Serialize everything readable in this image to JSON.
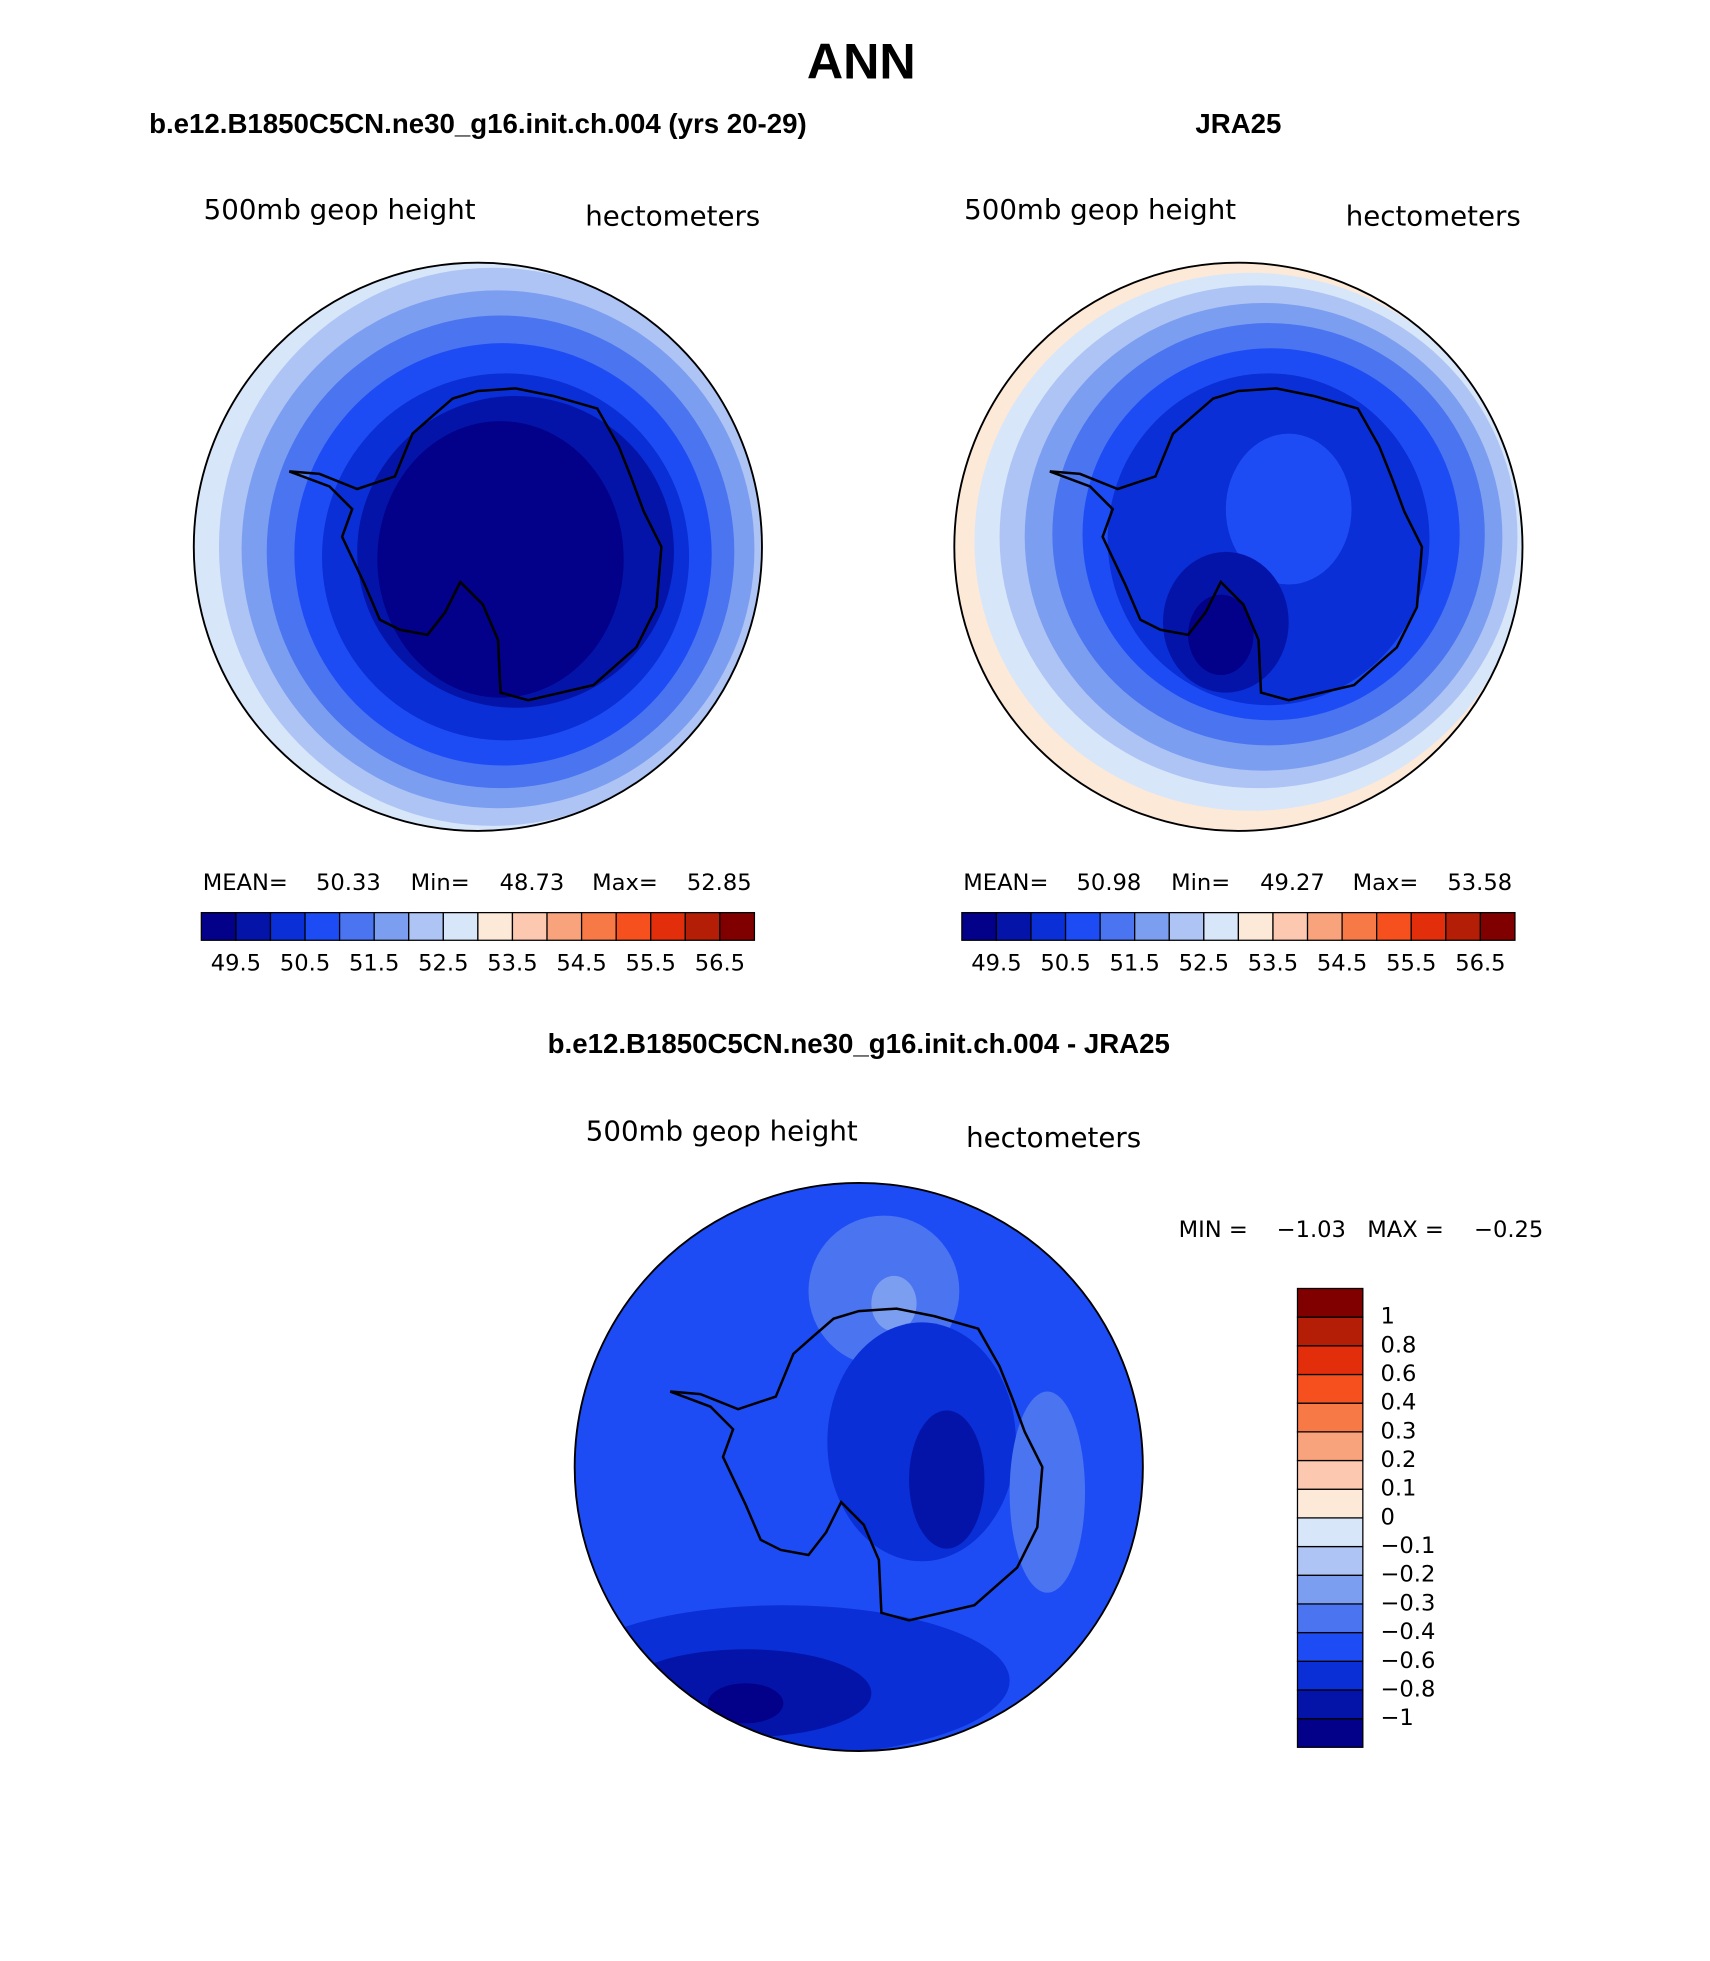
{
  "title": "ANN",
  "panels": [
    {
      "case": "b.e12.B1850C5CN.ne30_g16.init.ch.004 (yrs 20-29)",
      "variable": "500mb geop height",
      "units": "hectometers",
      "stats": [
        {
          "label": "MEAN=",
          "value": "50.33"
        },
        {
          "label": "Min=",
          "value": "48.73"
        },
        {
          "label": "Max=",
          "value": "52.85"
        }
      ],
      "colorbar": {
        "colors": [
          "#03008a",
          "#0514a8",
          "#0a2fd6",
          "#1d4cf5",
          "#4a74f0",
          "#7c9ef0",
          "#aec4f5",
          "#d8e6fa",
          "#fde9d8",
          "#fcc8b0",
          "#f9a37c",
          "#f77a46",
          "#f6501e",
          "#e22e0a",
          "#b41e06",
          "#800000"
        ],
        "labels": [
          "49.5",
          "50.5",
          "51.5",
          "52.5",
          "53.5",
          "54.5",
          "55.5",
          "56.5"
        ]
      }
    },
    {
      "case": "JRA25",
      "variable": "500mb geop height",
      "units": "hectometers",
      "stats": [
        {
          "label": "MEAN=",
          "value": "50.98"
        },
        {
          "label": "Min=",
          "value": "49.27"
        },
        {
          "label": "Max=",
          "value": "53.58"
        }
      ],
      "colorbar": {
        "colors": [
          "#03008a",
          "#0514a8",
          "#0a2fd6",
          "#1d4cf5",
          "#4a74f0",
          "#7c9ef0",
          "#aec4f5",
          "#d8e6fa",
          "#fde9d8",
          "#fcc8b0",
          "#f9a37c",
          "#f77a46",
          "#f6501e",
          "#e22e0a",
          "#b41e06",
          "#800000"
        ],
        "labels": [
          "49.5",
          "50.5",
          "51.5",
          "52.5",
          "53.5",
          "54.5",
          "55.5",
          "56.5"
        ]
      }
    }
  ],
  "difference": {
    "case": "b.e12.B1850C5CN.ne30_g16.init.ch.004 - JRA25",
    "variable": "500mb geop height",
    "units": "hectometers",
    "stats": [
      {
        "label": "MIN =",
        "value": "−1.03"
      },
      {
        "label": "MAX =",
        "value": "−0.25"
      }
    ],
    "colorbar": {
      "colors": [
        "#03008a",
        "#0514a8",
        "#0a2fd6",
        "#1d4cf5",
        "#4a74f0",
        "#7c9ef0",
        "#aec4f5",
        "#d8e6fa",
        "#fde9d8",
        "#fcc8b0",
        "#f9a37c",
        "#f77a46",
        "#f6501e",
        "#e22e0a",
        "#b41e06",
        "#800000"
      ],
      "labels": [
        "−1",
        "−0.8",
        "−0.6",
        "−0.4",
        "−0.3",
        "−0.2",
        "−0.1",
        "0",
        "0.1",
        "0.2",
        "0.3",
        "0.4",
        "0.6",
        "0.8",
        "1"
      ]
    }
  }
}
